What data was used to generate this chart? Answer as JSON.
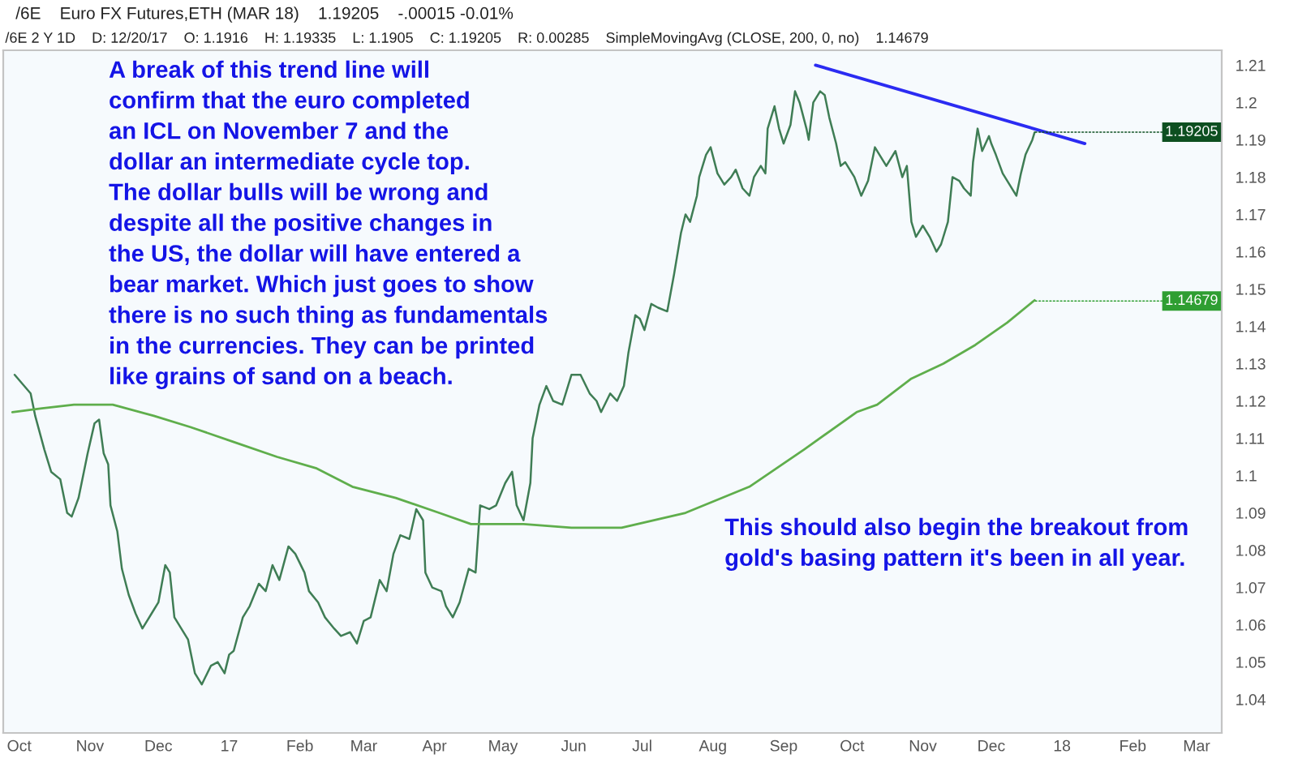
{
  "chart_data": {
    "type": "line",
    "title": "/6E    Euro FX Futures,ETH (MAR 18)    1.19205    -.00015 -0.01%",
    "subtitle": "/6E 2 Y 1D    D: 12/20/17    O: 1.1916    H: 1.19335    L: 1.1905    C: 1.19205    R: 0.00285    SimpleMovingAvg (CLOSE, 200, 0, no)    1.14679",
    "xlim": [
      "2016-09-24",
      "2018-03-12"
    ],
    "xticks": [
      {
        "value": "2016-10-01",
        "label": "Oct"
      },
      {
        "value": "2016-11-01",
        "label": "Nov"
      },
      {
        "value": "2016-12-01",
        "label": "Dec"
      },
      {
        "value": "2017-01-01",
        "label": "17"
      },
      {
        "value": "2017-02-01",
        "label": "Feb"
      },
      {
        "value": "2017-03-01",
        "label": "Mar"
      },
      {
        "value": "2017-04-01",
        "label": "Apr"
      },
      {
        "value": "2017-05-01",
        "label": "May"
      },
      {
        "value": "2017-06-01",
        "label": "Jun"
      },
      {
        "value": "2017-07-01",
        "label": "Jul"
      },
      {
        "value": "2017-08-01",
        "label": "Aug"
      },
      {
        "value": "2017-09-01",
        "label": "Sep"
      },
      {
        "value": "2017-10-01",
        "label": "Oct"
      },
      {
        "value": "2017-11-01",
        "label": "Nov"
      },
      {
        "value": "2017-12-01",
        "label": "Dec"
      },
      {
        "value": "2018-01-01",
        "label": "18"
      },
      {
        "value": "2018-02-01",
        "label": "Feb"
      },
      {
        "value": "2018-03-01",
        "label": "Mar"
      }
    ],
    "ylim": [
      1.031,
      1.214
    ],
    "yticks": [
      1.04,
      1.05,
      1.06,
      1.07,
      1.08,
      1.09,
      1.1,
      1.11,
      1.12,
      1.13,
      1.14,
      1.15,
      1.16,
      1.17,
      1.18,
      1.19,
      1.2,
      1.21
    ],
    "series": [
      {
        "color": "#3f7d55",
        "x": [
          "2016-09-29",
          "2016-10-06",
          "2016-10-08",
          "2016-10-12",
          "2016-10-15",
          "2016-10-19",
          "2016-10-22",
          "2016-10-24",
          "2016-10-27",
          "2016-10-31",
          "2016-11-03",
          "2016-11-05",
          "2016-11-07",
          "2016-11-09",
          "2016-11-10",
          "2016-11-13",
          "2016-11-15",
          "2016-11-18",
          "2016-11-21",
          "2016-11-24",
          "2016-11-28",
          "2016-12-01",
          "2016-12-04",
          "2016-12-06",
          "2016-12-08",
          "2016-12-11",
          "2016-12-14",
          "2016-12-17",
          "2016-12-20",
          "2016-12-24",
          "2016-12-27",
          "2016-12-30",
          "2017-01-01",
          "2017-01-03",
          "2017-01-07",
          "2017-01-10",
          "2017-01-14",
          "2017-01-17",
          "2017-01-20",
          "2017-01-23",
          "2017-01-27",
          "2017-01-30",
          "2017-02-03",
          "2017-02-05",
          "2017-02-09",
          "2017-02-12",
          "2017-02-16",
          "2017-02-19",
          "2017-02-23",
          "2017-02-26",
          "2017-03-01",
          "2017-03-04",
          "2017-03-08",
          "2017-03-11",
          "2017-03-14",
          "2017-03-17",
          "2017-03-21",
          "2017-03-24",
          "2017-03-27",
          "2017-03-28",
          "2017-03-31",
          "2017-04-04",
          "2017-04-06",
          "2017-04-09",
          "2017-04-12",
          "2017-04-16",
          "2017-04-19",
          "2017-04-21",
          "2017-04-25",
          "2017-04-28",
          "2017-05-02",
          "2017-05-05",
          "2017-05-07",
          "2017-05-10",
          "2017-05-13",
          "2017-05-14",
          "2017-05-17",
          "2017-05-20",
          "2017-05-23",
          "2017-05-27",
          "2017-05-31",
          "2017-06-04",
          "2017-06-08",
          "2017-06-11",
          "2017-06-13",
          "2017-06-17",
          "2017-06-20",
          "2017-06-23",
          "2017-06-25",
          "2017-06-28",
          "2017-06-30",
          "2017-07-02",
          "2017-07-05",
          "2017-07-08",
          "2017-07-12",
          "2017-07-15",
          "2017-07-18",
          "2017-07-20",
          "2017-07-22",
          "2017-07-25",
          "2017-07-26",
          "2017-07-29",
          "2017-07-31",
          "2017-08-03",
          "2017-08-06",
          "2017-08-09",
          "2017-08-11",
          "2017-08-14",
          "2017-08-17",
          "2017-08-19",
          "2017-08-22",
          "2017-08-24",
          "2017-08-25",
          "2017-08-28",
          "2017-08-30",
          "2017-09-01",
          "2017-09-04",
          "2017-09-06",
          "2017-09-08",
          "2017-09-11",
          "2017-09-12",
          "2017-09-14",
          "2017-09-17",
          "2017-09-19",
          "2017-09-21",
          "2017-09-24",
          "2017-09-26",
          "2017-09-28",
          "2017-10-02",
          "2017-10-05",
          "2017-10-08",
          "2017-10-11",
          "2017-10-13",
          "2017-10-16",
          "2017-10-20",
          "2017-10-23",
          "2017-10-25",
          "2017-10-27",
          "2017-10-29",
          "2017-11-01",
          "2017-11-04",
          "2017-11-07",
          "2017-11-09",
          "2017-11-12",
          "2017-11-14",
          "2017-11-17",
          "2017-11-19",
          "2017-11-22",
          "2017-11-23",
          "2017-11-25",
          "2017-11-27",
          "2017-11-30",
          "2017-12-01",
          "2017-12-03",
          "2017-12-06",
          "2017-12-09",
          "2017-12-12",
          "2017-12-14",
          "2017-12-16",
          "2017-12-19",
          "2017-12-20"
        ],
        "values": [
          1.127,
          1.122,
          1.116,
          1.107,
          1.101,
          1.099,
          1.09,
          1.089,
          1.094,
          1.106,
          1.114,
          1.115,
          1.106,
          1.103,
          1.092,
          1.085,
          1.075,
          1.068,
          1.063,
          1.059,
          1.063,
          1.066,
          1.076,
          1.074,
          1.062,
          1.059,
          1.056,
          1.047,
          1.044,
          1.049,
          1.05,
          1.047,
          1.052,
          1.053,
          1.062,
          1.065,
          1.071,
          1.069,
          1.076,
          1.072,
          1.081,
          1.079,
          1.074,
          1.069,
          1.066,
          1.062,
          1.059,
          1.057,
          1.058,
          1.055,
          1.061,
          1.062,
          1.072,
          1.069,
          1.079,
          1.084,
          1.083,
          1.091,
          1.088,
          1.074,
          1.07,
          1.069,
          1.065,
          1.062,
          1.066,
          1.075,
          1.074,
          1.092,
          1.091,
          1.092,
          1.098,
          1.101,
          1.092,
          1.088,
          1.098,
          1.11,
          1.119,
          1.124,
          1.12,
          1.119,
          1.127,
          1.127,
          1.122,
          1.12,
          1.117,
          1.122,
          1.12,
          1.124,
          1.133,
          1.143,
          1.142,
          1.139,
          1.146,
          1.145,
          1.144,
          1.154,
          1.165,
          1.17,
          1.168,
          1.175,
          1.18,
          1.186,
          1.188,
          1.181,
          1.178,
          1.18,
          1.182,
          1.177,
          1.175,
          1.18,
          1.183,
          1.181,
          1.193,
          1.199,
          1.193,
          1.189,
          1.194,
          1.203,
          1.2,
          1.193,
          1.19,
          1.2,
          1.203,
          1.202,
          1.196,
          1.189,
          1.183,
          1.184,
          1.18,
          1.175,
          1.179,
          1.188,
          1.186,
          1.183,
          1.187,
          1.18,
          1.183,
          1.168,
          1.164,
          1.167,
          1.164,
          1.16,
          1.162,
          1.168,
          1.18,
          1.179,
          1.177,
          1.175,
          1.184,
          1.193,
          1.187,
          1.191,
          1.189,
          1.186,
          1.181,
          1.178,
          1.175,
          1.181,
          1.186,
          1.19,
          1.192
        ]
      },
      {
        "color": "#5fae4c",
        "x": [
          "2016-09-28",
          "2016-10-11",
          "2016-10-25",
          "2016-11-11",
          "2016-11-29",
          "2016-12-15",
          "2017-01-03",
          "2017-01-22",
          "2017-02-08",
          "2017-02-24",
          "2017-03-15",
          "2017-04-03",
          "2017-04-17",
          "2017-04-26",
          "2017-05-10",
          "2017-05-31",
          "2017-06-22",
          "2017-07-20",
          "2017-08-17",
          "2017-09-10",
          "2017-10-03",
          "2017-10-12",
          "2017-10-27",
          "2017-11-10",
          "2017-11-24",
          "2017-12-08",
          "2017-12-20"
        ],
        "values": [
          1.117,
          1.118,
          1.119,
          1.119,
          1.116,
          1.113,
          1.109,
          1.105,
          1.102,
          1.097,
          1.094,
          1.09,
          1.087,
          1.087,
          1.087,
          1.086,
          1.086,
          1.09,
          1.097,
          1.107,
          1.117,
          1.119,
          1.126,
          1.13,
          1.135,
          1.141,
          1.147
        ]
      },
      {
        "color": "#2b2bf2",
        "x": [
          "2017-09-15",
          "2018-01-11"
        ],
        "values": [
          1.21,
          1.189
        ]
      }
    ],
    "annotations": [
      "A break of this trend line will\nconfirm that the euro completed\nan ICL on November 7 and the\ndollar an intermediate cycle top.\nThe dollar bulls will be wrong and\ndespite all the positive changes in\nthe US, the dollar will have entered a\nbear market. Which just goes to show\nthere is no such thing as fundamentals\nin the currencies. They can be printed\nlike grains of sand on a beach.",
      "This should also begin the breakout from\ngold's basing pattern it's been in all year.",
      {
        "text": "1.19205",
        "x": "2017-12-20",
        "y": 1.19205
      },
      {
        "text": "1.14679",
        "x": "2017-12-20",
        "y": 1.14679
      }
    ]
  }
}
